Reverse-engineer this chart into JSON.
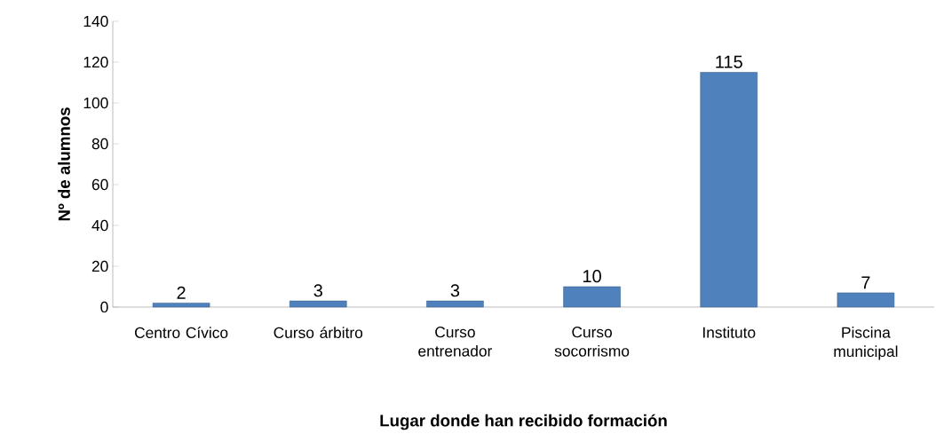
{
  "chart_data": {
    "type": "bar",
    "xlabel": "Lugar donde han recibido formación",
    "ylabel": "Nº de alumnos",
    "categories": [
      "Centro Cívico",
      "Curso árbitro",
      "Curso entrenador",
      "Curso socorrismo",
      "Instituto",
      "Piscina municipal"
    ],
    "values": [
      2,
      3,
      3,
      10,
      115,
      7
    ],
    "color": "#4f81bd",
    "ylim": [
      0,
      140
    ],
    "yticks": [
      0,
      20,
      40,
      60,
      80,
      100,
      120,
      140
    ],
    "data_labels": true,
    "grid": false
  }
}
